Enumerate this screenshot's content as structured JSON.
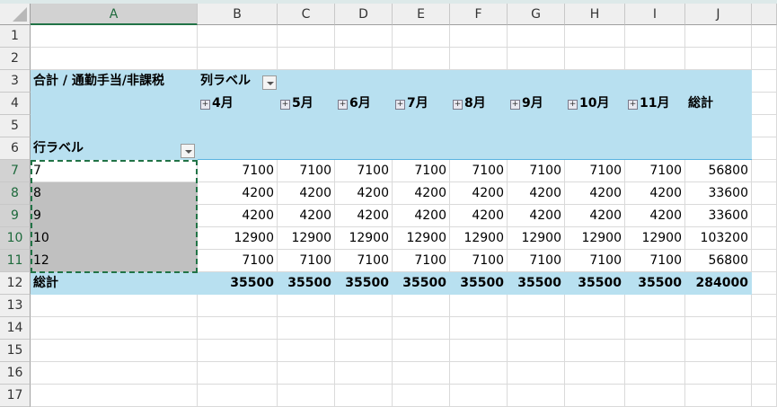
{
  "columns": [
    "A",
    "B",
    "C",
    "D",
    "E",
    "F",
    "G",
    "H",
    "I",
    "J",
    ""
  ],
  "rows": [
    "1",
    "2",
    "3",
    "4",
    "5",
    "6",
    "7",
    "8",
    "9",
    "10",
    "11",
    "12",
    "13",
    "14",
    "15",
    "16",
    "17"
  ],
  "pivot": {
    "value_field": "合計 / 通勤手当/非課税",
    "col_label": "列ラベル",
    "row_label": "行ラベル",
    "months": [
      "4月",
      "5月",
      "6月",
      "7月",
      "8月",
      "9月",
      "10月",
      "11月"
    ],
    "grand_total_label": "総計",
    "data_rows": [
      {
        "key": "7",
        "values": [
          "7100",
          "7100",
          "7100",
          "7100",
          "7100",
          "7100",
          "7100",
          "7100"
        ],
        "total": "56800"
      },
      {
        "key": "8",
        "values": [
          "4200",
          "4200",
          "4200",
          "4200",
          "4200",
          "4200",
          "4200",
          "4200"
        ],
        "total": "33600"
      },
      {
        "key": "9",
        "values": [
          "4200",
          "4200",
          "4200",
          "4200",
          "4200",
          "4200",
          "4200",
          "4200"
        ],
        "total": "33600"
      },
      {
        "key": "10",
        "values": [
          "12900",
          "12900",
          "12900",
          "12900",
          "12900",
          "12900",
          "12900",
          "12900"
        ],
        "total": "103200"
      },
      {
        "key": "12",
        "values": [
          "7100",
          "7100",
          "7100",
          "7100",
          "7100",
          "7100",
          "7100",
          "7100"
        ],
        "total": "56800"
      }
    ],
    "totals": [
      "35500",
      "35500",
      "35500",
      "35500",
      "35500",
      "35500",
      "35500",
      "35500"
    ],
    "grand_total": "284000"
  },
  "colors": {
    "pivot_header": "#b8e0f0",
    "selection": "#217346"
  }
}
